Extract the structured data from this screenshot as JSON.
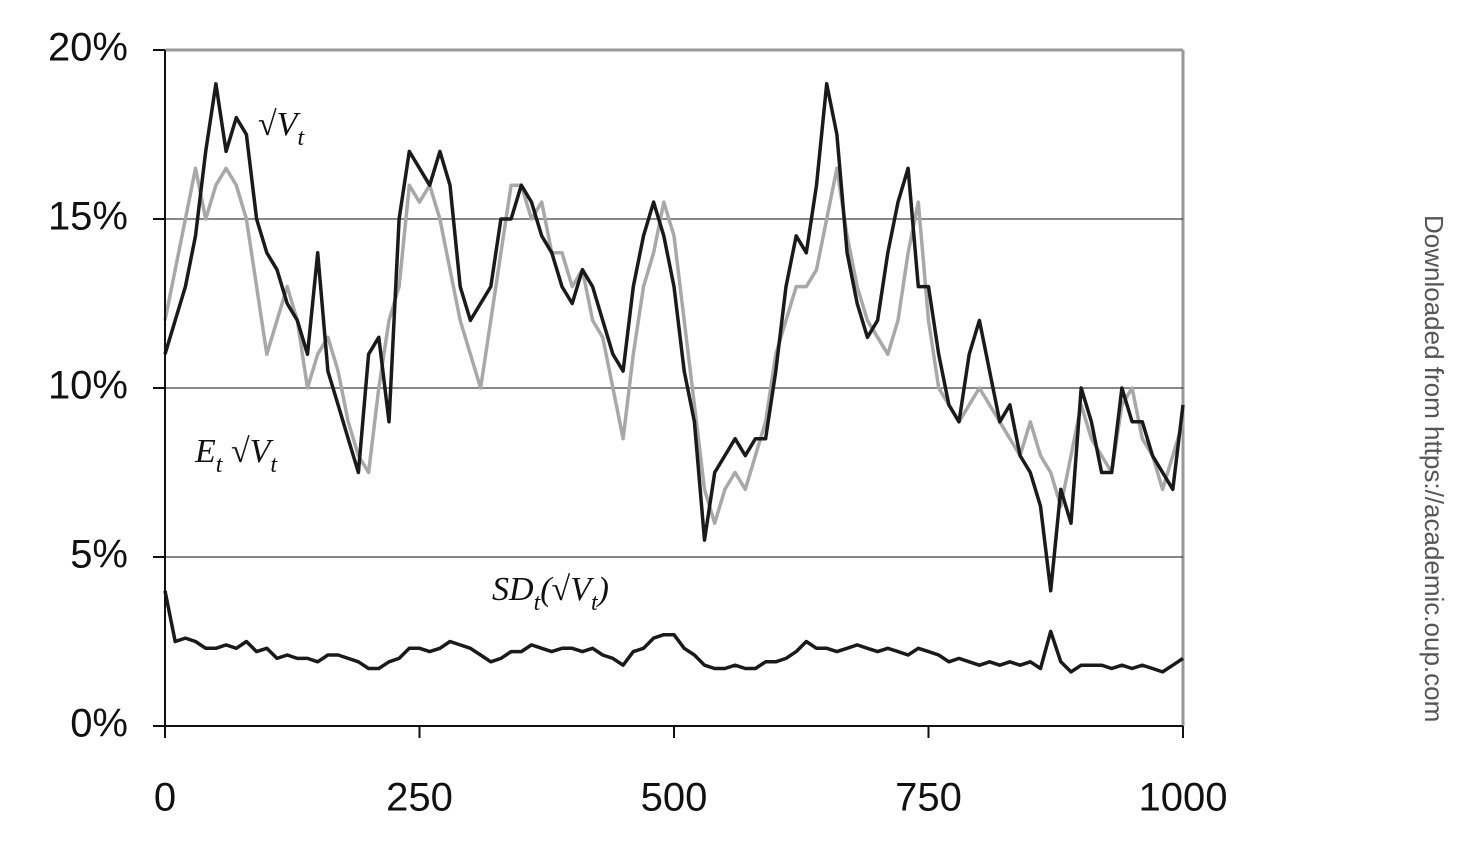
{
  "chart_data": {
    "type": "line",
    "x": [
      0,
      10,
      20,
      30,
      40,
      50,
      60,
      70,
      80,
      90,
      100,
      110,
      120,
      130,
      140,
      150,
      160,
      170,
      180,
      190,
      200,
      210,
      220,
      230,
      240,
      250,
      260,
      270,
      280,
      290,
      300,
      310,
      320,
      330,
      340,
      350,
      360,
      370,
      380,
      390,
      400,
      410,
      420,
      430,
      440,
      450,
      460,
      470,
      480,
      490,
      500,
      510,
      520,
      530,
      540,
      550,
      560,
      570,
      580,
      590,
      600,
      610,
      620,
      630,
      640,
      650,
      660,
      670,
      680,
      690,
      700,
      710,
      720,
      730,
      740,
      750,
      760,
      770,
      780,
      790,
      800,
      810,
      820,
      830,
      840,
      850,
      860,
      870,
      880,
      890,
      900,
      910,
      920,
      930,
      940,
      950,
      960,
      970,
      980,
      990,
      1000
    ],
    "series": [
      {
        "color": "#a8a8a8",
        "values": [
          12,
          13.5,
          15,
          16.5,
          15,
          16,
          16.5,
          16,
          15,
          13,
          11,
          12,
          13,
          12,
          10,
          11,
          11.5,
          10.5,
          9,
          8,
          7.5,
          10,
          12,
          13,
          16,
          15.5,
          16,
          15,
          13.5,
          12,
          11,
          10,
          12,
          14,
          16,
          16,
          15,
          15.5,
          14,
          14,
          13,
          13.5,
          12,
          11.5,
          10,
          8.5,
          11,
          13,
          14,
          15.5,
          14.5,
          12,
          9.5,
          7,
          6,
          7,
          7.5,
          7,
          8,
          9,
          11,
          12,
          13,
          13,
          13.5,
          15,
          16.5,
          14.5,
          13,
          12,
          11.5,
          11,
          12,
          14,
          15.5,
          12,
          10,
          9.5,
          9,
          9.5,
          10,
          9.5,
          9,
          8.5,
          8,
          9,
          8,
          7.5,
          6.5,
          8,
          9.5,
          8.5,
          8,
          7.5,
          9.5,
          10,
          8.5,
          8,
          7,
          8,
          9
        ]
      },
      {
        "color": "#1a1a1a",
        "values": [
          11,
          12,
          13,
          14.5,
          17,
          19,
          17,
          18,
          17.5,
          15,
          14,
          13.5,
          12.5,
          12,
          11,
          14,
          10.5,
          9.5,
          8.5,
          7.5,
          11,
          11.5,
          9,
          15,
          17,
          16.5,
          16,
          17,
          16,
          13,
          12,
          12.5,
          13,
          15,
          15,
          16,
          15.5,
          14.5,
          14,
          13,
          12.5,
          13.5,
          13,
          12,
          11,
          10.5,
          13,
          14.5,
          15.5,
          14.5,
          13,
          10.5,
          9,
          5.5,
          7.5,
          8,
          8.5,
          8,
          8.5,
          8.5,
          10.5,
          13,
          14.5,
          14,
          16,
          19,
          17.5,
          14,
          12.5,
          11.5,
          12,
          14,
          15.5,
          16.5,
          13,
          13,
          11,
          9.5,
          9,
          11,
          12,
          10.5,
          9,
          9.5,
          8,
          7.5,
          6.5,
          4,
          7,
          6,
          10,
          9,
          7.5,
          7.5,
          10,
          9,
          9,
          8,
          7.5,
          7,
          9.5
        ]
      },
      {
        "color": "#1a1a1a",
        "values": [
          4,
          2.5,
          2.6,
          2.5,
          2.3,
          2.3,
          2.4,
          2.3,
          2.5,
          2.2,
          2.3,
          2.0,
          2.1,
          2.0,
          2.0,
          1.9,
          2.1,
          2.1,
          2.0,
          1.9,
          1.7,
          1.7,
          1.9,
          2.0,
          2.3,
          2.3,
          2.2,
          2.3,
          2.5,
          2.4,
          2.3,
          2.1,
          1.9,
          2.0,
          2.2,
          2.2,
          2.4,
          2.3,
          2.2,
          2.3,
          2.3,
          2.2,
          2.3,
          2.1,
          2.0,
          1.8,
          2.2,
          2.3,
          2.6,
          2.7,
          2.7,
          2.3,
          2.1,
          1.8,
          1.7,
          1.7,
          1.8,
          1.7,
          1.7,
          1.9,
          1.9,
          2.0,
          2.2,
          2.5,
          2.3,
          2.3,
          2.2,
          2.3,
          2.4,
          2.3,
          2.2,
          2.3,
          2.2,
          2.1,
          2.3,
          2.2,
          2.1,
          1.9,
          2.0,
          1.9,
          1.8,
          1.9,
          1.8,
          1.9,
          1.8,
          1.9,
          1.7,
          2.8,
          1.9,
          1.6,
          1.8,
          1.8,
          1.8,
          1.7,
          1.8,
          1.7,
          1.8,
          1.7,
          1.6,
          1.8,
          2.0
        ]
      }
    ],
    "xlim": [
      0,
      1000
    ],
    "xticks": [
      0,
      250,
      500,
      750,
      1000
    ],
    "ylim": [
      0,
      20
    ],
    "yticks": [
      {
        "value": 0,
        "label": "0%"
      },
      {
        "value": 5,
        "label": "5%"
      },
      {
        "value": 10,
        "label": "10%"
      },
      {
        "value": 15,
        "label": "15%"
      },
      {
        "value": 20,
        "label": "20%"
      }
    ],
    "grid": true,
    "annotations": [
      {
        "parts": [
          "√V",
          "t"
        ]
      },
      {
        "parts": [
          "E",
          "t",
          " √V",
          "t"
        ]
      },
      {
        "parts": [
          "SD",
          "t",
          "(√V",
          "t",
          ")"
        ]
      }
    ]
  },
  "watermark": "Downloaded from https://academic.oup.com"
}
